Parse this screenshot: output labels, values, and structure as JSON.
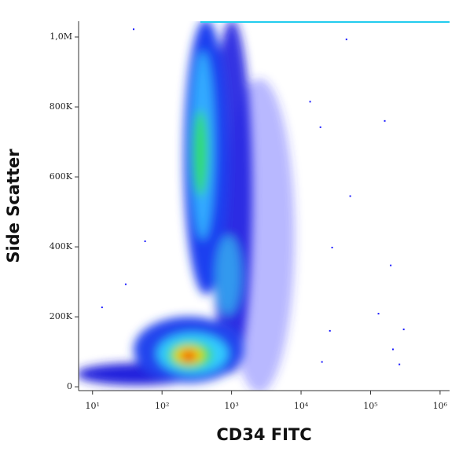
{
  "chart_data": {
    "type": "scatter",
    "x_label": "CD34 FITC",
    "y_label": "Side Scatter",
    "x_log": true,
    "xlim": [
      6.3,
      1370000
    ],
    "xticks": [
      {
        "value": 10,
        "label": "10¹"
      },
      {
        "value": 100,
        "label": "10²"
      },
      {
        "value": 1000,
        "label": "10³"
      },
      {
        "value": 10000,
        "label": "10⁴"
      },
      {
        "value": 100000,
        "label": "10⁵"
      },
      {
        "value": 1000000,
        "label": "10⁶"
      }
    ],
    "ylim": [
      -11000,
      1045000
    ],
    "yticks": [
      0,
      {
        "value": 200000,
        "label": "200K"
      },
      {
        "value": 400000,
        "label": "400K"
      },
      {
        "value": 600000,
        "label": "600K"
      },
      {
        "value": 800000,
        "label": "800K"
      },
      {
        "value": 1000000,
        "label": "1,0M"
      }
    ],
    "series": [
      {
        "color": "#1a1aff",
        "x": [
          160000,
          51000,
          195000,
          300000,
          210000,
          260000,
          28000,
          19000,
          45000,
          130000,
          13500,
          39,
          13.7,
          30,
          26000,
          20000,
          57
        ],
        "values": [
          760000,
          545000,
          347000,
          164000,
          107000,
          64000,
          398000,
          742000,
          993000,
          209000,
          815000,
          1022000,
          227000,
          293000,
          160000,
          71000,
          416000
        ]
      }
    ]
  }
}
